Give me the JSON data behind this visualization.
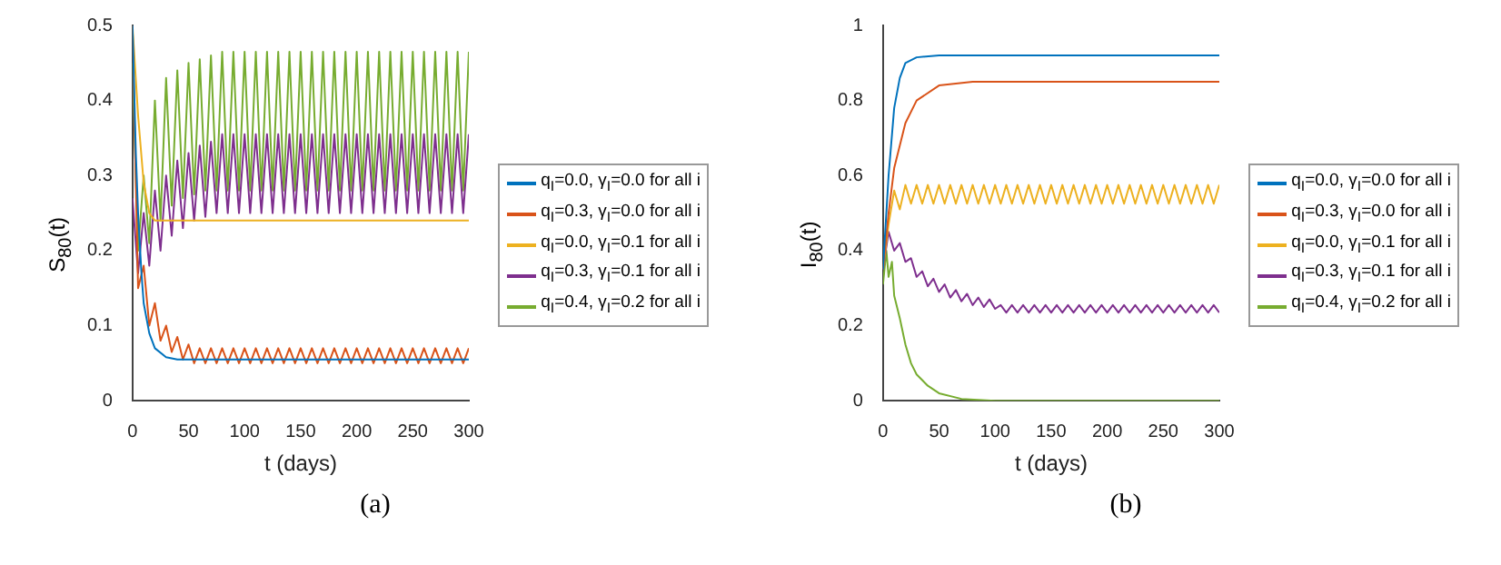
{
  "chart_data": [
    {
      "type": "line",
      "ylabel": "S$_{80}$(t)",
      "xlabel": "t (days)",
      "annotations": [
        "(a)"
      ],
      "legend": "right",
      "grid": false,
      "xlim": [
        0,
        300
      ],
      "xticks": [
        0,
        50,
        100,
        150,
        200,
        250,
        300
      ],
      "ylim": [
        0,
        0.5
      ],
      "yticks": [
        0,
        0.1,
        0.2,
        0.3,
        0.4,
        0.5
      ],
      "x": [
        0,
        5,
        10,
        15,
        20,
        25,
        30,
        35,
        40,
        45,
        50,
        55,
        60,
        65,
        70,
        75,
        80,
        85,
        90,
        95,
        100,
        105,
        110,
        115,
        120,
        125,
        130,
        135,
        140,
        145,
        150,
        155,
        160,
        165,
        170,
        175,
        180,
        185,
        190,
        195,
        200,
        205,
        210,
        215,
        220,
        225,
        230,
        235,
        240,
        245,
        250,
        255,
        260,
        265,
        270,
        275,
        280,
        285,
        290,
        295,
        300
      ],
      "series": [
        {
          "name": "q$_{I}$=0.0, γ$_{I}$=0.0 for all i",
          "color": "#0072bd",
          "x": [
            0,
            3,
            5,
            8,
            10,
            15,
            20,
            30,
            40,
            60,
            300
          ],
          "values": [
            0.5,
            0.33,
            0.25,
            0.17,
            0.13,
            0.09,
            0.07,
            0.058,
            0.055,
            0.055,
            0.055
          ]
        },
        {
          "name": "q$_{I}$=0.3, γ$_{I}$=0.0 for all i",
          "color": "#d95319",
          "values": [
            0.5,
            0.15,
            0.18,
            0.1,
            0.13,
            0.08,
            0.1,
            0.065,
            0.085,
            0.055,
            0.075,
            0.05,
            0.07,
            0.05,
            0.07,
            0.05,
            0.07,
            0.05,
            0.07,
            0.05,
            0.07,
            0.05,
            0.07,
            0.05,
            0.07,
            0.05,
            0.07,
            0.05,
            0.07,
            0.05,
            0.07,
            0.05,
            0.07,
            0.05,
            0.07,
            0.05,
            0.07,
            0.05,
            0.07,
            0.05,
            0.07,
            0.05,
            0.07,
            0.05,
            0.07,
            0.05,
            0.07,
            0.05,
            0.07,
            0.05,
            0.07,
            0.05,
            0.07,
            0.05,
            0.07,
            0.05,
            0.07,
            0.05,
            0.07,
            0.05,
            0.07
          ]
        },
        {
          "name": "q$_{I}$=0.0, γ$_{I}$=0.1 for all i",
          "color": "#edb120",
          "x": [
            0,
            5,
            10,
            15,
            20,
            300
          ],
          "values": [
            0.5,
            0.38,
            0.29,
            0.25,
            0.24,
            0.24
          ]
        },
        {
          "name": "q$_{I}$=0.3, γ$_{I}$=0.1 for all i",
          "color": "#7e2f8e",
          "values": [
            0.27,
            0.17,
            0.25,
            0.18,
            0.28,
            0.2,
            0.3,
            0.22,
            0.32,
            0.23,
            0.33,
            0.24,
            0.34,
            0.245,
            0.345,
            0.25,
            0.355,
            0.25,
            0.355,
            0.25,
            0.355,
            0.25,
            0.355,
            0.25,
            0.355,
            0.25,
            0.355,
            0.25,
            0.355,
            0.25,
            0.355,
            0.25,
            0.355,
            0.25,
            0.355,
            0.25,
            0.355,
            0.25,
            0.355,
            0.25,
            0.355,
            0.25,
            0.355,
            0.25,
            0.355,
            0.25,
            0.355,
            0.25,
            0.355,
            0.25,
            0.355,
            0.25,
            0.355,
            0.25,
            0.355,
            0.25,
            0.355,
            0.25,
            0.355,
            0.25,
            0.355
          ]
        },
        {
          "name": "q$_{I}$=0.4, γ$_{I}$=0.2 for all i",
          "color": "#77ac30",
          "values": [
            0.45,
            0.2,
            0.3,
            0.21,
            0.4,
            0.24,
            0.43,
            0.26,
            0.44,
            0.27,
            0.45,
            0.275,
            0.455,
            0.28,
            0.46,
            0.28,
            0.465,
            0.28,
            0.465,
            0.28,
            0.465,
            0.28,
            0.465,
            0.28,
            0.465,
            0.28,
            0.465,
            0.28,
            0.465,
            0.28,
            0.465,
            0.28,
            0.465,
            0.28,
            0.465,
            0.28,
            0.465,
            0.28,
            0.465,
            0.28,
            0.465,
            0.28,
            0.465,
            0.28,
            0.465,
            0.28,
            0.465,
            0.28,
            0.465,
            0.28,
            0.465,
            0.28,
            0.465,
            0.28,
            0.465,
            0.28,
            0.465,
            0.28,
            0.465,
            0.28,
            0.465
          ]
        }
      ]
    },
    {
      "type": "line",
      "ylabel": "I$_{80}$(t)",
      "xlabel": "t (days)",
      "annotations": [
        "(b)"
      ],
      "legend": "right",
      "grid": false,
      "xlim": [
        0,
        300
      ],
      "xticks": [
        0,
        50,
        100,
        150,
        200,
        250,
        300
      ],
      "ylim": [
        0,
        1
      ],
      "yticks": [
        0,
        0.2,
        0.4,
        0.6,
        0.8,
        1
      ],
      "x": [
        0,
        5,
        10,
        15,
        20,
        25,
        30,
        35,
        40,
        45,
        50,
        55,
        60,
        65,
        70,
        75,
        80,
        85,
        90,
        95,
        100,
        105,
        110,
        115,
        120,
        125,
        130,
        135,
        140,
        145,
        150,
        155,
        160,
        165,
        170,
        175,
        180,
        185,
        190,
        195,
        200,
        205,
        210,
        215,
        220,
        225,
        230,
        235,
        240,
        245,
        250,
        255,
        260,
        265,
        270,
        275,
        280,
        285,
        290,
        295,
        300
      ],
      "series": [
        {
          "name": "q$_{I}$=0.0, γ$_{I}$=0.0 for all i",
          "color": "#0072bd",
          "x": [
            0,
            5,
            10,
            15,
            20,
            30,
            50,
            300
          ],
          "values": [
            0.35,
            0.6,
            0.78,
            0.86,
            0.9,
            0.915,
            0.92,
            0.92
          ]
        },
        {
          "name": "q$_{I}$=0.3, γ$_{I}$=0.0 for all i",
          "color": "#d95319",
          "x": [
            0,
            5,
            10,
            20,
            30,
            50,
            80,
            300
          ],
          "values": [
            0.35,
            0.5,
            0.62,
            0.74,
            0.8,
            0.84,
            0.85,
            0.85
          ]
        },
        {
          "name": "q$_{I}$=0.0, γ$_{I}$=0.1 for all i",
          "color": "#edb120",
          "values": [
            0.35,
            0.47,
            0.56,
            0.51,
            0.575,
            0.525,
            0.575,
            0.525,
            0.575,
            0.525,
            0.575,
            0.525,
            0.575,
            0.525,
            0.575,
            0.525,
            0.575,
            0.525,
            0.575,
            0.525,
            0.575,
            0.525,
            0.575,
            0.525,
            0.575,
            0.525,
            0.575,
            0.525,
            0.575,
            0.525,
            0.575,
            0.525,
            0.575,
            0.525,
            0.575,
            0.525,
            0.575,
            0.525,
            0.575,
            0.525,
            0.575,
            0.525,
            0.575,
            0.525,
            0.575,
            0.525,
            0.575,
            0.525,
            0.575,
            0.525,
            0.575,
            0.525,
            0.575,
            0.525,
            0.575,
            0.525,
            0.575,
            0.525,
            0.575,
            0.525,
            0.575
          ]
        },
        {
          "name": "q$_{I}$=0.3, γ$_{I}$=0.1 for all i",
          "color": "#7e2f8e",
          "values": [
            0.35,
            0.45,
            0.4,
            0.42,
            0.37,
            0.38,
            0.33,
            0.345,
            0.305,
            0.325,
            0.29,
            0.31,
            0.275,
            0.295,
            0.265,
            0.285,
            0.255,
            0.275,
            0.25,
            0.27,
            0.245,
            0.255,
            0.235,
            0.255,
            0.235,
            0.255,
            0.235,
            0.255,
            0.235,
            0.255,
            0.235,
            0.255,
            0.235,
            0.255,
            0.235,
            0.255,
            0.235,
            0.255,
            0.235,
            0.255,
            0.235,
            0.255,
            0.235,
            0.255,
            0.235,
            0.255,
            0.235,
            0.255,
            0.235,
            0.255,
            0.235,
            0.255,
            0.235,
            0.255,
            0.235,
            0.255,
            0.235,
            0.255,
            0.235,
            0.255,
            0.235
          ]
        },
        {
          "name": "q$_{I}$=0.4, γ$_{I}$=0.2 for all i",
          "color": "#77ac30",
          "x": [
            0,
            3,
            5,
            8,
            10,
            15,
            20,
            25,
            30,
            40,
            50,
            70,
            100,
            300
          ],
          "values": [
            0.31,
            0.4,
            0.33,
            0.37,
            0.28,
            0.22,
            0.15,
            0.1,
            0.07,
            0.04,
            0.02,
            0.005,
            0,
            0
          ]
        }
      ]
    }
  ]
}
